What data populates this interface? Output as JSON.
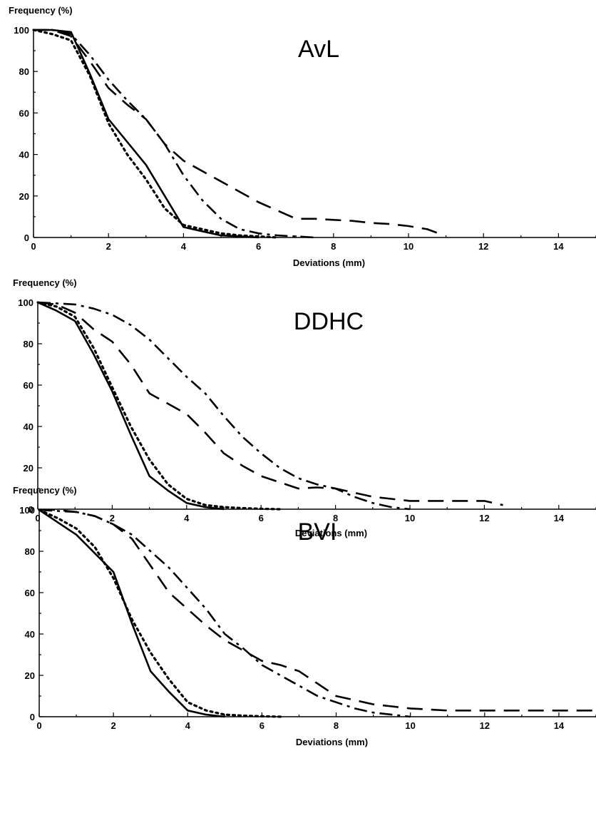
{
  "chart_data": [
    {
      "type": "line",
      "title": "AvL",
      "xlabel": "Deviations (mm)",
      "ylabel": "Frequency (%)",
      "xlim": [
        0,
        15
      ],
      "ylim": [
        0,
        100
      ],
      "xticks": [
        "0",
        "2",
        "4",
        "6",
        "8",
        "10",
        "12",
        "14"
      ],
      "yticks": [
        "0",
        "20",
        "40",
        "60",
        "80",
        "100"
      ],
      "grid": false,
      "series": [
        {
          "style": "solid",
          "x": [
            0,
            0.5,
            1,
            1.5,
            2,
            2.5,
            3,
            3.5,
            4,
            4.5,
            5,
            5.5,
            6
          ],
          "y": [
            100,
            100,
            99,
            79,
            57,
            46,
            35,
            20,
            5,
            3,
            1,
            0.5,
            0
          ]
        },
        {
          "style": "dotted",
          "x": [
            0,
            0.5,
            1,
            1.5,
            2,
            2.5,
            3,
            3.5,
            4,
            4.5,
            5,
            5.5,
            6,
            6.5
          ],
          "y": [
            100,
            98,
            95,
            78,
            55,
            40,
            28,
            14,
            6,
            4,
            2,
            1,
            0.5,
            0
          ]
        },
        {
          "style": "dashed",
          "x": [
            0,
            0.5,
            1,
            1.5,
            2,
            2.5,
            3,
            3.5,
            4,
            4.5,
            5,
            5.5,
            6,
            6.5,
            7,
            7.5,
            8,
            8.5,
            9,
            9.5,
            10,
            10.5,
            10.8
          ],
          "y": [
            100,
            100,
            97,
            85,
            72,
            64,
            57,
            45,
            37,
            32,
            27,
            22,
            17,
            13,
            9,
            9,
            8.5,
            8,
            7,
            6.5,
            5.5,
            4,
            2
          ]
        },
        {
          "style": "dash-dot",
          "x": [
            0,
            0.5,
            1,
            1.5,
            2,
            2.5,
            3,
            3.5,
            4,
            4.5,
            5,
            5.5,
            6,
            6.5,
            7,
            7.5
          ],
          "y": [
            100,
            100,
            98,
            88,
            76,
            66,
            57,
            45,
            30,
            18,
            9,
            4,
            2,
            1,
            0.5,
            0
          ]
        }
      ]
    },
    {
      "type": "line",
      "title": "DDHC",
      "xlabel": "Deviations (mm)",
      "ylabel": "Frequency (%)",
      "xlim": [
        0,
        15
      ],
      "ylim": [
        0,
        100
      ],
      "xticks": [
        "0",
        "2",
        "4",
        "6",
        "8",
        "10",
        "12",
        "14"
      ],
      "yticks": [
        "0",
        "20",
        "40",
        "60",
        "80",
        "100"
      ],
      "grid": false,
      "series": [
        {
          "style": "solid",
          "x": [
            0,
            0.5,
            1,
            1.5,
            2,
            2.5,
            3,
            3.5,
            4,
            4.5,
            5
          ],
          "y": [
            100,
            96,
            91,
            75,
            57,
            36,
            16,
            9,
            3,
            1,
            0
          ]
        },
        {
          "style": "dotted",
          "x": [
            0,
            0.5,
            1,
            1.5,
            2,
            2.5,
            3,
            3.5,
            4,
            4.5,
            5,
            5.5,
            6,
            6.5
          ],
          "y": [
            100,
            98,
            93,
            78,
            59,
            40,
            24,
            12,
            5,
            2,
            1,
            0.5,
            0.2,
            0
          ]
        },
        {
          "style": "dashed",
          "x": [
            0,
            0.5,
            1,
            1.5,
            2,
            2.5,
            3,
            3.5,
            4,
            4.5,
            5,
            5.5,
            6,
            6.5,
            7,
            7.5,
            8,
            8.5,
            9,
            9.5,
            10,
            10.5,
            11,
            11.5,
            12,
            12.5
          ],
          "y": [
            100,
            99,
            95,
            87,
            81,
            70,
            56,
            51,
            46,
            37,
            27,
            21,
            16,
            13,
            10,
            10.5,
            10,
            8,
            6,
            5,
            4,
            4,
            4,
            4,
            4,
            2
          ]
        },
        {
          "style": "dash-dot",
          "x": [
            0,
            0.5,
            1,
            1.5,
            2,
            2.5,
            3,
            3.5,
            4,
            4.5,
            5,
            5.5,
            6,
            6.5,
            7,
            7.5,
            8,
            8.5,
            9,
            9.5,
            10
          ],
          "y": [
            100,
            99.5,
            99,
            97,
            94,
            89,
            82,
            73,
            64,
            56,
            45,
            35,
            27,
            20,
            15,
            12,
            10,
            6,
            3,
            1,
            0
          ]
        }
      ]
    },
    {
      "type": "line",
      "title": "BVI",
      "xlabel": "Deviations (mm)",
      "ylabel": "Frequency (%)",
      "xlim": [
        0,
        15
      ],
      "ylim": [
        0,
        100
      ],
      "xticks": [
        "0",
        "2",
        "4",
        "6",
        "8",
        "10",
        "12",
        "14"
      ],
      "yticks": [
        "0",
        "20",
        "40",
        "60",
        "80",
        "100"
      ],
      "grid": false,
      "series": [
        {
          "style": "solid",
          "x": [
            0,
            0.5,
            1,
            1.5,
            2,
            2.5,
            3,
            3.5,
            4,
            4.5,
            5
          ],
          "y": [
            100,
            94,
            88,
            79,
            70,
            45,
            22,
            12,
            3,
            1,
            0
          ]
        },
        {
          "style": "dotted",
          "x": [
            0,
            0.5,
            1,
            1.5,
            2,
            2.5,
            3,
            3.5,
            4,
            4.5,
            5,
            5.5,
            6,
            6.5
          ],
          "y": [
            100,
            96,
            91,
            82,
            67,
            47,
            31,
            18,
            7,
            3,
            1,
            0.5,
            0.2,
            0
          ]
        },
        {
          "style": "dashed",
          "x": [
            0,
            0.5,
            1,
            1.5,
            2,
            2.5,
            3,
            3.5,
            4,
            4.5,
            5,
            5.5,
            6,
            6.5,
            7,
            7.5,
            8,
            8.5,
            9,
            9.5,
            10,
            11,
            12,
            13,
            14,
            15
          ],
          "y": [
            100,
            100,
            99,
            97,
            93,
            86,
            73,
            60,
            52,
            44,
            37,
            32,
            27,
            25,
            22,
            16,
            10,
            8,
            6,
            5,
            4,
            3,
            3,
            3,
            3,
            3
          ]
        },
        {
          "style": "dash-dot",
          "x": [
            0,
            0.5,
            1,
            1.5,
            2,
            2.5,
            3,
            3.5,
            4,
            4.5,
            5,
            5.5,
            6,
            6.5,
            7,
            7.5,
            8,
            8.5,
            9,
            9.5,
            10
          ],
          "y": [
            100,
            99.5,
            99,
            97,
            93,
            88,
            80,
            72,
            62,
            52,
            40,
            33,
            25,
            20,
            15,
            10,
            7,
            4,
            2,
            1,
            0
          ]
        }
      ]
    }
  ]
}
